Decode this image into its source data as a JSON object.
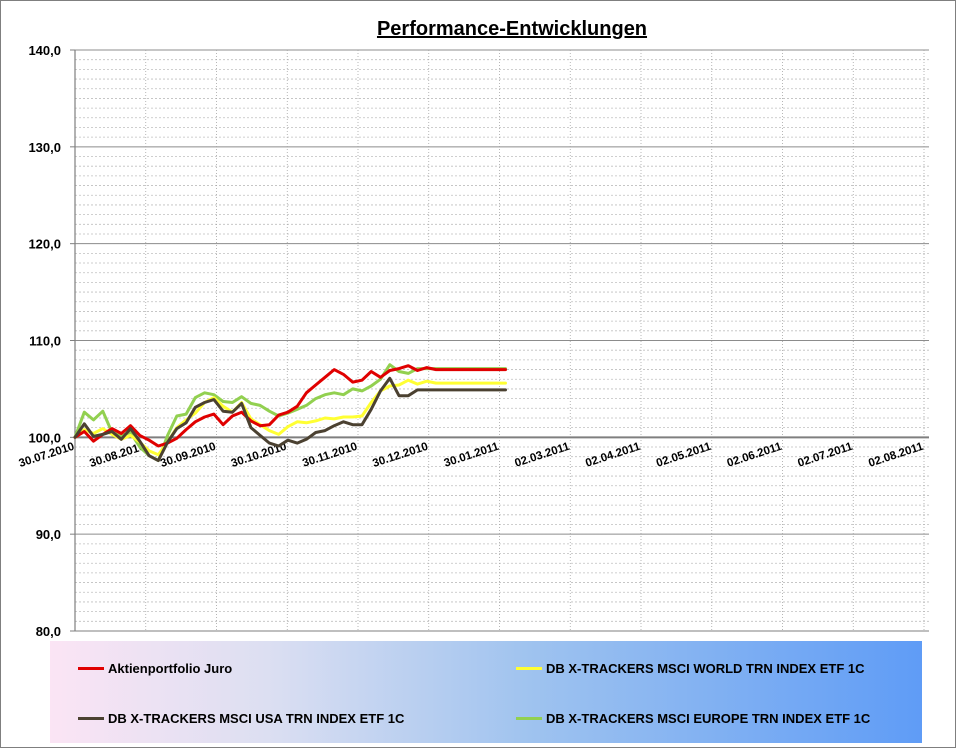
{
  "chart_data": {
    "type": "line",
    "title": "Performance-Entwicklungen",
    "xlabel": "",
    "ylabel": "",
    "ylim": [
      80,
      140
    ],
    "y_ticks": [
      "80,0",
      "90,0",
      "100,0",
      "110,0",
      "120,0",
      "130,0",
      "140,0"
    ],
    "x_ticks": [
      "30.07.2010",
      "30.08.2010",
      "30.09.2010",
      "30.10.2010",
      "30.11.2010",
      "30.12.2010",
      "30.01.2011",
      "02.03.2011",
      "02.04.2011",
      "02.05.2011",
      "02.06.2011",
      "02.07.2011",
      "02.08.2011"
    ],
    "x_range_days": [
      0,
      369
    ],
    "grid": true,
    "legend_position": "bottom",
    "series": [
      {
        "name": "Aktienportfolio Juro",
        "color": "#e00000",
        "x": [
          0,
          4,
          8,
          12,
          16,
          20,
          24,
          28,
          32,
          36,
          40,
          44,
          48,
          52,
          56,
          60,
          64,
          68,
          72,
          76,
          80,
          84,
          88,
          92,
          96,
          100,
          104,
          108,
          112,
          116,
          120,
          124,
          128,
          132,
          136,
          140,
          144,
          148,
          152,
          156,
          160,
          164,
          168,
          172,
          176,
          180,
          184,
          186
        ],
        "values": [
          100.0,
          100.6,
          99.6,
          100.3,
          100.9,
          100.4,
          101.2,
          100.2,
          99.7,
          99.1,
          99.4,
          99.9,
          100.8,
          101.6,
          102.1,
          102.4,
          101.3,
          102.2,
          102.6,
          101.7,
          101.2,
          101.3,
          102.3,
          102.6,
          103.2,
          104.6,
          105.4,
          106.2,
          107.0,
          106.5,
          105.7,
          105.9,
          106.8,
          106.2,
          106.9,
          107.1,
          107.4,
          106.9,
          107.2,
          107.0,
          107.0,
          107.0,
          107.0,
          107.0,
          107.0,
          107.0,
          107.0,
          107.0
        ]
      },
      {
        "name": "DB X-TRACKERS  MSCI WORLD TRN INDEX ETF 1C",
        "color": "#ffff33",
        "x": [
          0,
          4,
          8,
          12,
          16,
          20,
          24,
          28,
          32,
          36,
          40,
          44,
          48,
          52,
          56,
          60,
          64,
          68,
          72,
          76,
          80,
          84,
          88,
          92,
          96,
          100,
          104,
          108,
          112,
          116,
          120,
          124,
          128,
          132,
          136,
          140,
          144,
          148,
          152,
          156,
          160,
          164,
          168,
          172,
          176,
          180,
          184,
          186
        ],
        "values": [
          100.0,
          100.8,
          100.4,
          100.9,
          100.3,
          99.8,
          100.2,
          99.5,
          98.6,
          98.2,
          99.5,
          101.0,
          101.8,
          102.5,
          103.6,
          104.1,
          103.2,
          102.6,
          103.6,
          101.9,
          101.3,
          100.7,
          100.3,
          101.1,
          101.6,
          101.5,
          101.7,
          102.0,
          101.9,
          102.1,
          102.1,
          102.2,
          103.6,
          104.8,
          105.3,
          105.4,
          105.9,
          105.5,
          105.8,
          105.6,
          105.6,
          105.6,
          105.6,
          105.6,
          105.6,
          105.6,
          105.6,
          105.6
        ]
      },
      {
        "name": "DB X-TRACKERS  MSCI USA TRN INDEX ETF 1C",
        "color": "#4b4131",
        "x": [
          0,
          4,
          8,
          12,
          16,
          20,
          24,
          28,
          32,
          36,
          40,
          44,
          48,
          52,
          56,
          60,
          64,
          68,
          72,
          76,
          80,
          84,
          88,
          92,
          96,
          100,
          104,
          108,
          112,
          116,
          120,
          124,
          128,
          132,
          136,
          140,
          144,
          148,
          152,
          156,
          160,
          164,
          168,
          172,
          176,
          180,
          184,
          186
        ],
        "values": [
          100.0,
          101.4,
          100.1,
          100.3,
          100.6,
          99.8,
          100.9,
          99.6,
          98.1,
          97.6,
          99.5,
          100.9,
          101.5,
          103.1,
          103.6,
          103.9,
          102.7,
          102.6,
          103.5,
          101.0,
          100.2,
          99.4,
          99.1,
          99.7,
          99.4,
          99.8,
          100.5,
          100.7,
          101.2,
          101.6,
          101.3,
          101.3,
          102.9,
          104.8,
          106.1,
          104.3,
          104.3,
          104.9,
          104.9,
          104.9,
          104.9,
          104.9,
          104.9,
          104.9,
          104.9,
          104.9,
          104.9,
          104.9
        ]
      },
      {
        "name": "DB X-TRACKERS  MSCI EUROPE TRN INDEX ETF 1C",
        "color": "#92d050",
        "x": [
          0,
          4,
          8,
          12,
          16,
          20,
          24,
          28,
          32,
          36,
          40,
          44,
          48,
          52,
          56,
          60,
          64,
          68,
          72,
          76,
          80,
          84,
          88,
          92,
          96,
          100,
          104,
          108,
          112,
          116,
          120,
          124,
          128,
          132,
          136,
          140,
          144,
          148,
          152,
          156,
          160,
          164,
          168,
          172,
          176,
          180,
          184,
          186
        ],
        "values": [
          100.0,
          102.6,
          101.8,
          102.7,
          100.5,
          100.2,
          100.5,
          99.0,
          98.1,
          97.6,
          100.2,
          102.2,
          102.4,
          104.1,
          104.6,
          104.4,
          103.7,
          103.6,
          104.2,
          103.5,
          103.3,
          102.7,
          102.2,
          102.5,
          102.9,
          103.3,
          104.0,
          104.4,
          104.6,
          104.4,
          105.0,
          104.8,
          105.3,
          106.0,
          107.5,
          106.8,
          106.6,
          107.1,
          107.1,
          107.1,
          107.1,
          107.1,
          107.1,
          107.1,
          107.1,
          107.1,
          107.1,
          107.1
        ]
      }
    ]
  }
}
